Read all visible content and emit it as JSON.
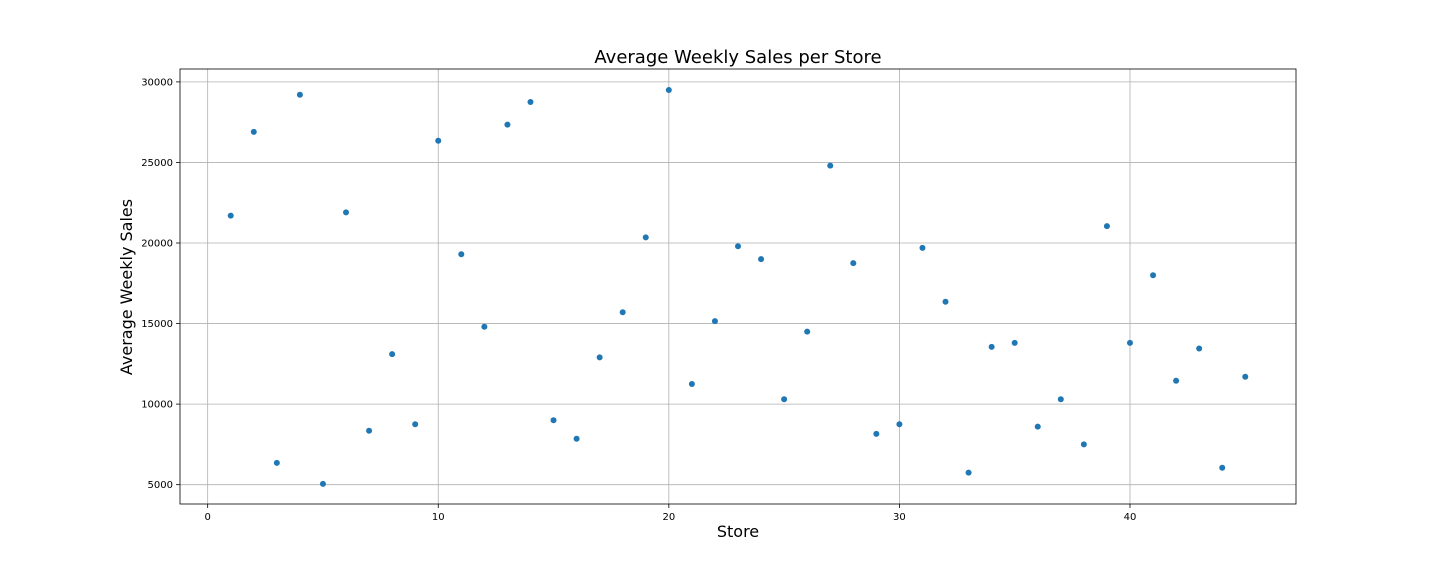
{
  "chart_data": {
    "type": "scatter",
    "title": "Average Weekly Sales per Store",
    "xlabel": "Store",
    "ylabel": "Average Weekly Sales",
    "xlim": [
      -1.2,
      47.2
    ],
    "ylim": [
      3800,
      30800
    ],
    "x_ticks": [
      0,
      10,
      20,
      30,
      40
    ],
    "y_ticks": [
      5000,
      10000,
      15000,
      20000,
      25000,
      30000
    ],
    "grid": true,
    "marker_color": "#1f77b4",
    "series": [
      {
        "x": [
          1,
          2,
          3,
          4,
          5,
          6,
          7,
          8,
          9,
          10,
          11,
          12,
          13,
          14,
          15,
          16,
          17,
          18,
          19,
          20,
          21,
          22,
          23,
          24,
          25,
          26,
          27,
          28,
          29,
          30,
          31,
          32,
          33,
          34,
          35,
          36,
          37,
          38,
          39,
          40,
          41,
          42,
          43,
          44,
          45
        ],
        "y": [
          21700,
          26900,
          6350,
          29200,
          5050,
          21900,
          8350,
          13100,
          8750,
          26350,
          19300,
          14800,
          27350,
          28750,
          9000,
          7850,
          12900,
          15700,
          20350,
          29500,
          11250,
          15150,
          19800,
          19000,
          10300,
          14500,
          24800,
          18750,
          8150,
          8750,
          19700,
          16350,
          5750,
          13550,
          13800,
          8600,
          10300,
          7500,
          21050,
          13800,
          18000,
          11450,
          13450,
          6050,
          11700
        ]
      }
    ]
  }
}
